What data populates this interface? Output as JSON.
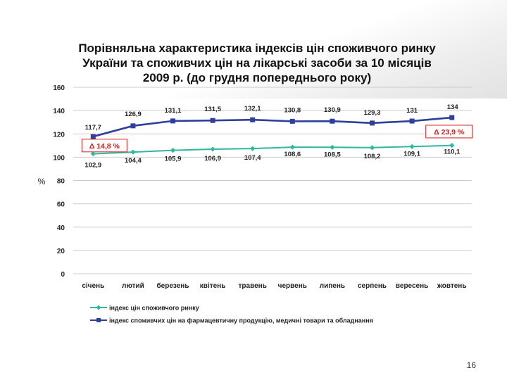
{
  "title_lines": [
    "Порівняльна характеристика індексів цін споживчого ринку",
    "України та споживчих цін на лікарські засоби за 10 місяців",
    "2009 р. (до грудня попереднього року)"
  ],
  "page_number": "16",
  "colors": {
    "consumer": "#2eb8a0",
    "pharma": "#2e3f9e",
    "annotation": "#d42020",
    "grid": "#cccccc"
  },
  "chart_data": {
    "type": "line",
    "categories": [
      "січень",
      "лютий",
      "березень",
      "квітень",
      "травень",
      "червень",
      "липень",
      "серпень",
      "вересень",
      "жовтень"
    ],
    "ylabel": "%",
    "ylim": [
      0,
      160
    ],
    "yticks": [
      0,
      20,
      40,
      60,
      80,
      100,
      120,
      140,
      160
    ],
    "grid": true,
    "legend_position": "bottom",
    "series": [
      {
        "name": "індекс цін споживчого ринку",
        "marker": "diamond",
        "values": [
          102.9,
          104.4,
          105.9,
          106.9,
          107.4,
          108.6,
          108.5,
          108.2,
          109.1,
          110.1
        ],
        "labels": [
          "102,9",
          "104,4",
          "105,9",
          "106,9",
          "107,4",
          "108,6",
          "108,5",
          "108,2",
          "109,1",
          "110,1"
        ]
      },
      {
        "name": "індекс споживчих цін на фармацевтичну продукцію, медичні товари та обладнання",
        "marker": "square",
        "values": [
          117.7,
          126.9,
          131.1,
          131.5,
          132.1,
          130.8,
          130.9,
          129.3,
          131,
          134
        ],
        "labels": [
          "117,7",
          "126,9",
          "131,1",
          "131,5",
          "132,1",
          "130,8",
          "130,9",
          "129,3",
          "131",
          "134"
        ]
      }
    ],
    "annotations": [
      {
        "text": "Δ 14,8 %",
        "category": "січень"
      },
      {
        "text": "Δ 23,9 %",
        "category": "жовтень"
      }
    ]
  }
}
